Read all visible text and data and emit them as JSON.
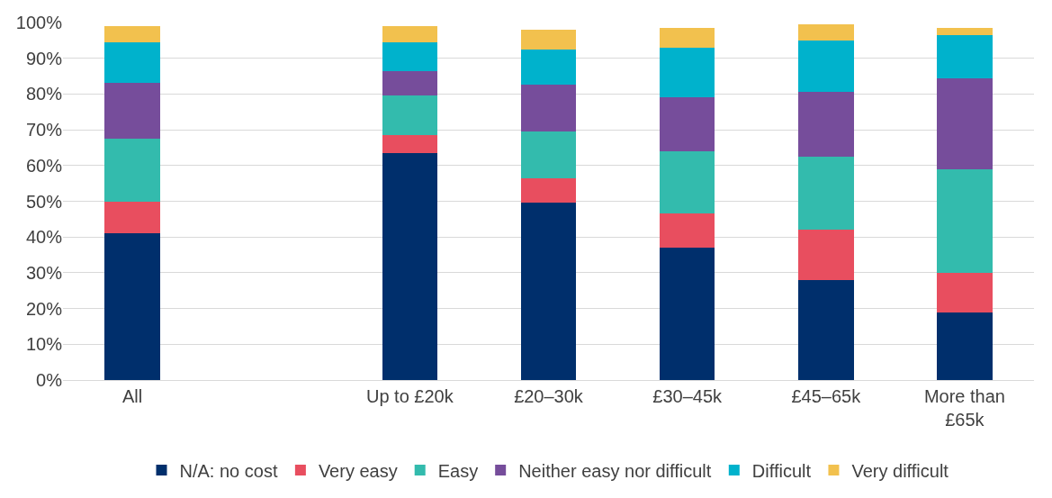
{
  "chart_data": {
    "type": "bar",
    "stacked": true,
    "categories": [
      "All",
      null,
      "Up to £20k",
      "£20–30k",
      "£30–45k",
      "£45–65k",
      "More than £65k"
    ],
    "series": [
      {
        "name": "N/A: no cost",
        "color": "#002f6c",
        "values": [
          41,
          null,
          63.5,
          49.5,
          37,
          28,
          19
        ]
      },
      {
        "name": "Very easy",
        "color": "#e84e5f",
        "values": [
          9,
          null,
          5,
          7,
          9.5,
          14,
          11
        ]
      },
      {
        "name": "Easy",
        "color": "#33bbad",
        "values": [
          17.5,
          null,
          11,
          13,
          17.5,
          20.5,
          29
        ]
      },
      {
        "name": "Neither easy nor difficult",
        "color": "#764d9b",
        "values": [
          15.5,
          null,
          7,
          13,
          15,
          18,
          25.5
        ]
      },
      {
        "name": "Difficult",
        "color": "#00b2cc",
        "values": [
          11.5,
          null,
          8,
          10,
          14,
          14.5,
          12
        ]
      },
      {
        "name": "Very difficult",
        "color": "#f2c14e",
        "values": [
          4.5,
          null,
          4.5,
          5.5,
          5.5,
          4.5,
          2
        ]
      }
    ],
    "ylim": [
      0,
      100
    ],
    "yticks": [
      {
        "value": 0,
        "label": "0%"
      },
      {
        "value": 10,
        "label": "10%"
      },
      {
        "value": 20,
        "label": "20%"
      },
      {
        "value": 30,
        "label": "30%"
      },
      {
        "value": 40,
        "label": "40%"
      },
      {
        "value": 50,
        "label": "50%"
      },
      {
        "value": 60,
        "label": "60%"
      },
      {
        "value": 70,
        "label": "70%"
      },
      {
        "value": 80,
        "label": "80%"
      },
      {
        "value": 90,
        "label": "90%"
      },
      {
        "value": 100,
        "label": "100%"
      }
    ],
    "grid": "y",
    "legend": "bottom"
  }
}
